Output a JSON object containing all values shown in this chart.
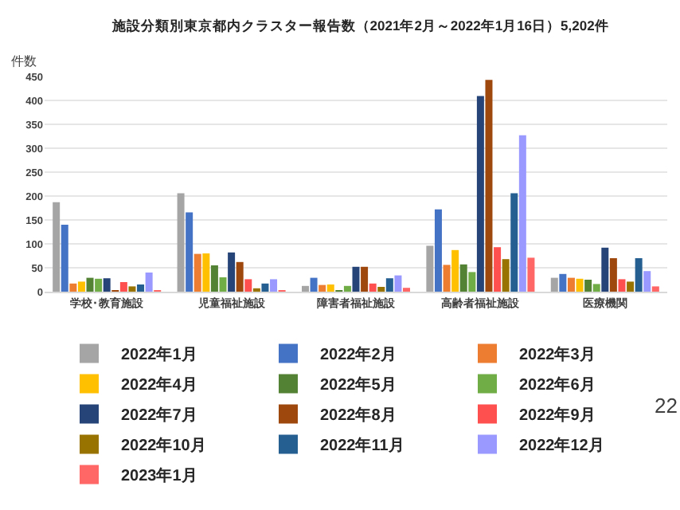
{
  "chart_data": {
    "type": "bar",
    "title": "施設分類別東京都内クラスター報告数（2021年2月～2022年1月16日）5,202件",
    "ylabel": "件数",
    "categories": [
      "学校･教育施設",
      "児童福祉施設",
      "障害者福祉施設",
      "高齢者福祉施設",
      "医療機関"
    ],
    "series": [
      {
        "name": "2022年1月",
        "color": "#a5a5a5",
        "values": [
          187,
          206,
          12,
          96,
          29
        ]
      },
      {
        "name": "2022年2月",
        "color": "#4472c4",
        "values": [
          140,
          166,
          29,
          172,
          37
        ]
      },
      {
        "name": "2022年3月",
        "color": "#ed7d31",
        "values": [
          17,
          79,
          14,
          56,
          29
        ]
      },
      {
        "name": "2022年4月",
        "color": "#ffc000",
        "values": [
          21,
          80,
          15,
          87,
          27
        ]
      },
      {
        "name": "2022年5月",
        "color": "#548235",
        "values": [
          29,
          55,
          3,
          57,
          25
        ]
      },
      {
        "name": "2022年6月",
        "color": "#70ad47",
        "values": [
          27,
          30,
          12,
          41,
          16
        ]
      },
      {
        "name": "2022年7月",
        "color": "#264478",
        "values": [
          28,
          82,
          52,
          409,
          92
        ]
      },
      {
        "name": "2022年8月",
        "color": "#9e480e",
        "values": [
          2,
          62,
          52,
          443,
          70
        ]
      },
      {
        "name": "2022年9月",
        "color": "#ff5050",
        "values": [
          20,
          26,
          17,
          93,
          26
        ]
      },
      {
        "name": "2022年10月",
        "color": "#997300",
        "values": [
          11,
          7,
          10,
          68,
          21
        ]
      },
      {
        "name": "2022年11月",
        "color": "#255e91",
        "values": [
          15,
          17,
          28,
          206,
          70
        ]
      },
      {
        "name": "2022年12月",
        "color": "#9999ff",
        "values": [
          40,
          26,
          34,
          327,
          43
        ]
      },
      {
        "name": "2023年1月",
        "color": "#ff6666",
        "values": [
          2,
          3,
          8,
          71,
          11
        ]
      }
    ],
    "ylim": [
      0,
      450
    ],
    "yticks": [
      0,
      50,
      100,
      150,
      200,
      250,
      300,
      350,
      400,
      450
    ],
    "grid": "y",
    "legend": "bottom",
    "annotations": [
      "22"
    ]
  }
}
